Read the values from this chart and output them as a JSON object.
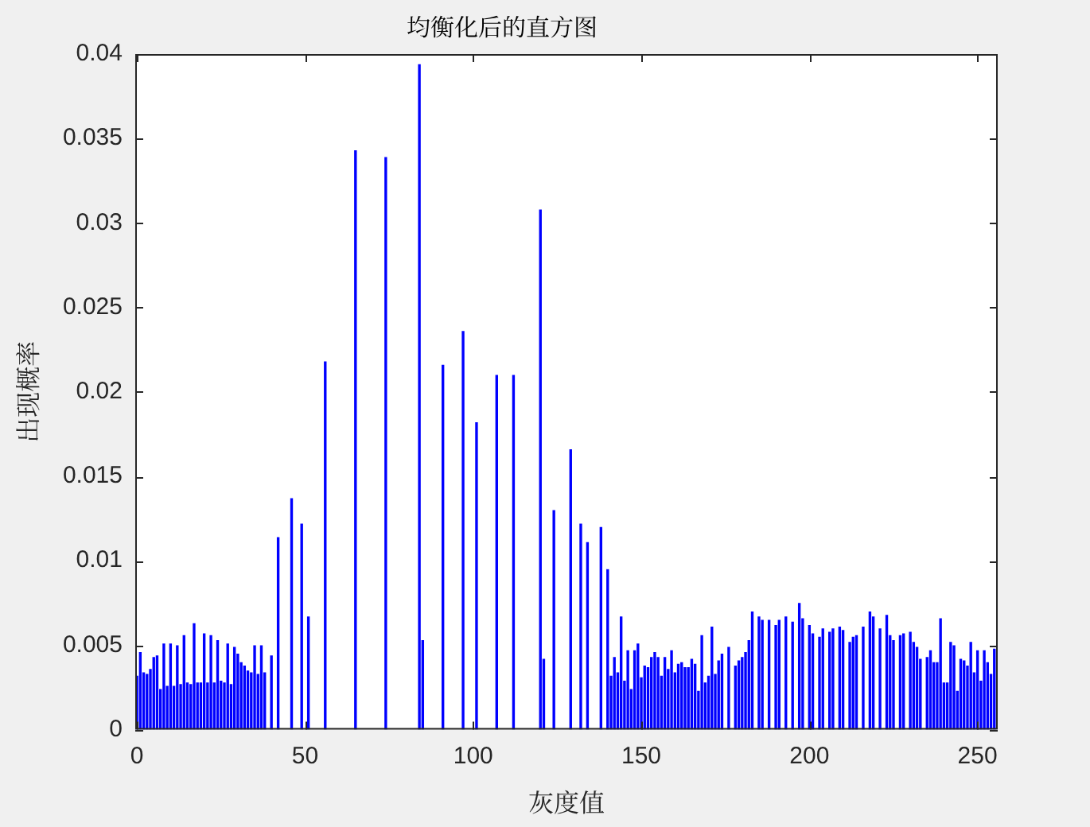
{
  "chart_data": {
    "type": "bar",
    "title": "均衡化后的直方图",
    "xlabel": "灰度值",
    "ylabel": "出现概率",
    "x": [
      0,
      1,
      2,
      3,
      4,
      5,
      6,
      7,
      8,
      9,
      10,
      11,
      12,
      13,
      14,
      15,
      16,
      17,
      18,
      19,
      20,
      21,
      22,
      23,
      24,
      25,
      26,
      27,
      28,
      29,
      30,
      31,
      32,
      33,
      34,
      35,
      36,
      37,
      38,
      40,
      42,
      46,
      49,
      51,
      56,
      65,
      74,
      84,
      85,
      91,
      97,
      101,
      107,
      112,
      120,
      121,
      124,
      129,
      132,
      134,
      138,
      140,
      141,
      142,
      143,
      144,
      145,
      146,
      147,
      148,
      149,
      150,
      151,
      152,
      153,
      154,
      155,
      156,
      157,
      158,
      159,
      160,
      161,
      162,
      163,
      164,
      165,
      166,
      167,
      168,
      169,
      170,
      171,
      172,
      173,
      174,
      176,
      178,
      179,
      180,
      181,
      182,
      183,
      185,
      186,
      188,
      190,
      191,
      193,
      195,
      197,
      198,
      200,
      201,
      203,
      204,
      206,
      207,
      209,
      210,
      212,
      213,
      214,
      216,
      218,
      219,
      221,
      223,
      224,
      225,
      227,
      228,
      230,
      231,
      232,
      233,
      235,
      236,
      237,
      238,
      239,
      240,
      241,
      242,
      243,
      244,
      245,
      246,
      247,
      248,
      249,
      250,
      251,
      252,
      253,
      254,
      255
    ],
    "values": [
      0.0032,
      0.0046,
      0.0034,
      0.0033,
      0.0036,
      0.0043,
      0.0044,
      0.0024,
      0.0051,
      0.0026,
      0.0051,
      0.0026,
      0.005,
      0.0027,
      0.0056,
      0.0028,
      0.0027,
      0.0063,
      0.0028,
      0.0028,
      0.0057,
      0.0028,
      0.0056,
      0.0028,
      0.0053,
      0.0029,
      0.0028,
      0.0051,
      0.0027,
      0.0049,
      0.0045,
      0.004,
      0.0038,
      0.0035,
      0.0034,
      0.005,
      0.0033,
      0.005,
      0.0034,
      0.0044,
      0.0114,
      0.0137,
      0.0122,
      0.0067,
      0.0218,
      0.0343,
      0.0339,
      0.0394,
      0.0053,
      0.0216,
      0.0236,
      0.0182,
      0.021,
      0.021,
      0.0308,
      0.0042,
      0.013,
      0.0166,
      0.0122,
      0.0111,
      0.012,
      0.0095,
      0.0032,
      0.0043,
      0.0034,
      0.0067,
      0.0029,
      0.0047,
      0.0024,
      0.0047,
      0.0051,
      0.0031,
      0.0038,
      0.0037,
      0.0043,
      0.0046,
      0.0043,
      0.0032,
      0.0043,
      0.0036,
      0.0047,
      0.0034,
      0.0039,
      0.004,
      0.0037,
      0.0037,
      0.0042,
      0.0039,
      0.0023,
      0.0056,
      0.0028,
      0.0032,
      0.0061,
      0.0033,
      0.0041,
      0.0045,
      0.0049,
      0.0038,
      0.0041,
      0.0043,
      0.0046,
      0.0053,
      0.007,
      0.0067,
      0.0065,
      0.0065,
      0.0062,
      0.0065,
      0.0067,
      0.0064,
      0.0075,
      0.0066,
      0.0062,
      0.0057,
      0.0055,
      0.006,
      0.0058,
      0.006,
      0.0061,
      0.0059,
      0.0052,
      0.0055,
      0.0056,
      0.0061,
      0.007,
      0.0067,
      0.006,
      0.0068,
      0.0056,
      0.0053,
      0.0056,
      0.0057,
      0.0058,
      0.0052,
      0.0049,
      0.0042,
      0.0043,
      0.0047,
      0.004,
      0.004,
      0.0066,
      0.0028,
      0.0028,
      0.0052,
      0.005,
      0.0023,
      0.0042,
      0.0041,
      0.0038,
      0.0052,
      0.0034,
      0.0047,
      0.0029,
      0.0047,
      0.004,
      0.0033,
      0.0048
    ],
    "color": "#0000ff",
    "xlim": [
      -0.5,
      256
    ],
    "xticks": [
      0,
      50,
      100,
      150,
      200,
      250
    ],
    "ylim": [
      0,
      0.04
    ],
    "yticks": [
      0,
      0.005,
      0.01,
      0.015,
      0.02,
      0.025,
      0.03,
      0.035,
      0.04
    ],
    "grid": false,
    "legend": false
  }
}
